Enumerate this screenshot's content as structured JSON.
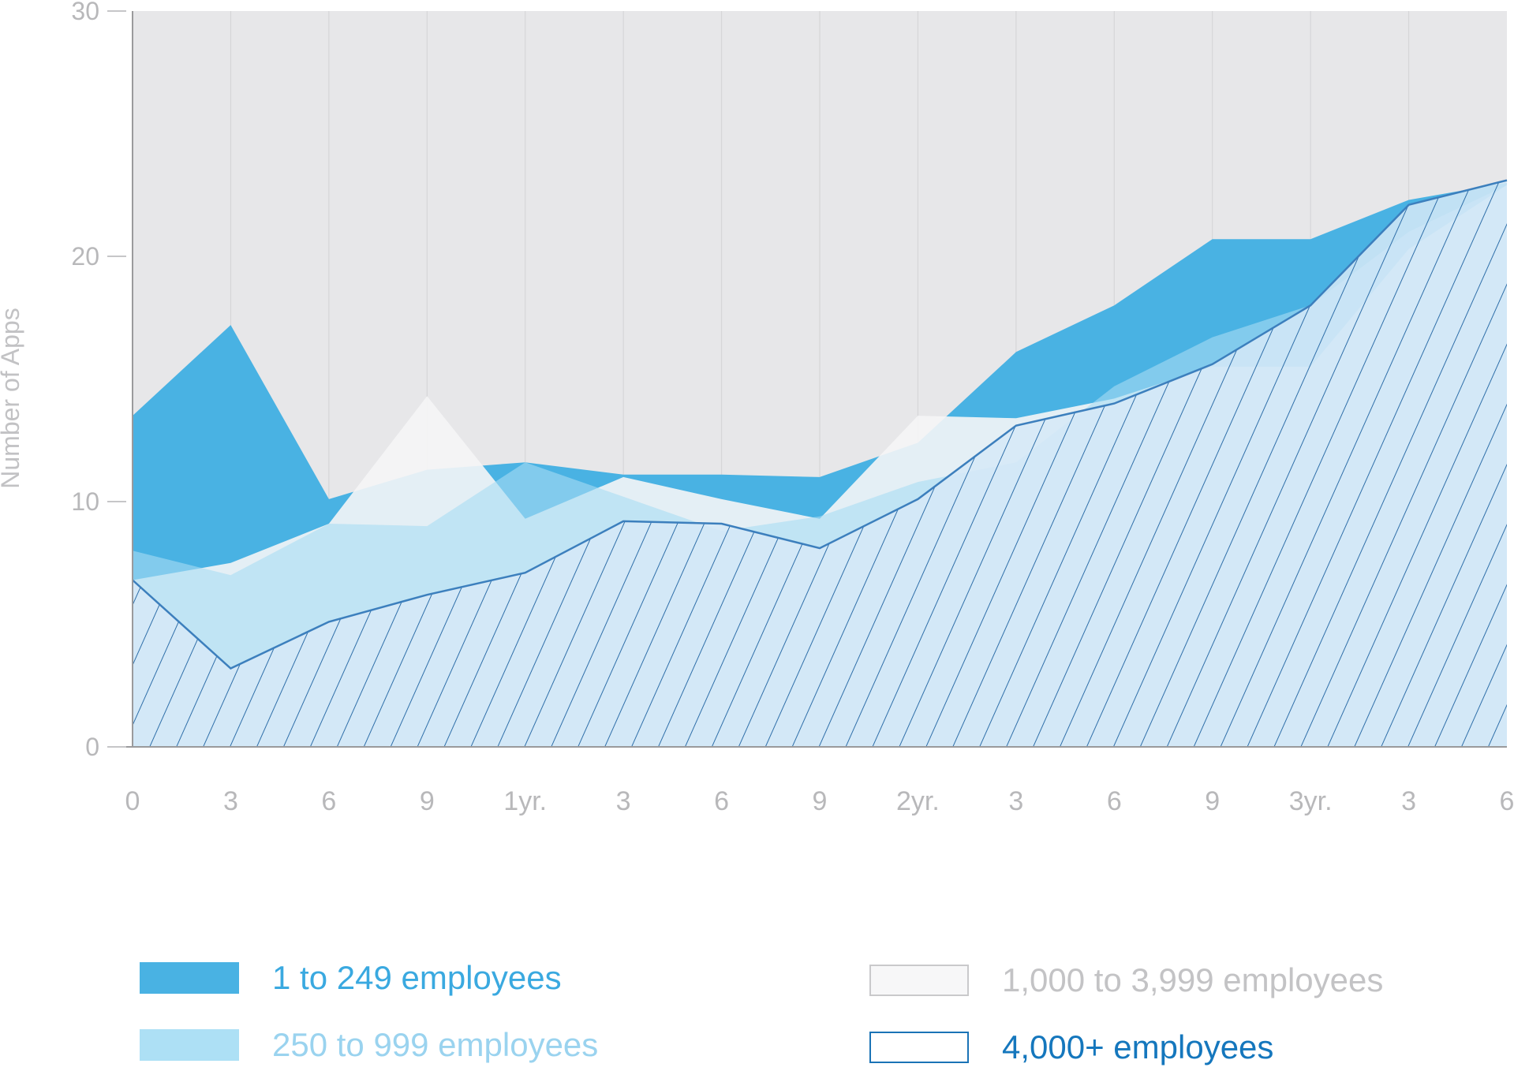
{
  "chart_data": {
    "type": "area",
    "title": "",
    "xlabel": "",
    "ylabel": "Number of Apps",
    "ylim": [
      0,
      30
    ],
    "yticks": [
      0,
      10,
      20,
      30
    ],
    "grid": true,
    "legend_position": "bottom",
    "categories": [
      "0",
      "3",
      "6",
      "9",
      "1yr.",
      "3",
      "6",
      "9",
      "2yr.",
      "3",
      "6",
      "9",
      "3yr.",
      "3",
      "6"
    ],
    "series": [
      {
        "name": "1 to 249 employees",
        "color": "#49b2e3",
        "style": "solid",
        "values": [
          13.5,
          17.2,
          10.1,
          11.3,
          11.6,
          11.1,
          11.1,
          11.0,
          12.4,
          16.1,
          18.0,
          20.7,
          20.7,
          22.3,
          23.0
        ]
      },
      {
        "name": "1,000 to 3,999 employees",
        "color": "#f5f5f6",
        "style": "outline-light",
        "values": [
          6.8,
          7.5,
          9.1,
          14.3,
          9.3,
          11.0,
          10.1,
          9.3,
          13.5,
          13.4,
          14.2,
          15.5,
          15.5,
          20.3,
          22.9
        ]
      },
      {
        "name": "250 to 999 employees",
        "color": "#a9dcf3",
        "style": "solid-light",
        "values": [
          8.0,
          7.0,
          9.1,
          9.0,
          11.6,
          10.2,
          8.8,
          9.4,
          10.8,
          11.6,
          14.7,
          16.7,
          18.0,
          21.0,
          22.9
        ]
      },
      {
        "name": "4,000+ employees",
        "color": "#1a73b6",
        "style": "hatched",
        "values": [
          6.8,
          3.2,
          5.1,
          6.2,
          7.1,
          9.2,
          9.1,
          8.1,
          10.1,
          13.1,
          14.0,
          15.6,
          18.0,
          22.1,
          23.1
        ]
      }
    ]
  },
  "legend": {
    "items": [
      {
        "label": "1 to 249 employees",
        "text_color": "#3aa9e0",
        "swatch_fill": "#49b2e3",
        "swatch_stroke": "#49b2e3"
      },
      {
        "label": "250 to 999 employees",
        "text_color": "#9ad3ef",
        "swatch_fill": "#ade0f5",
        "swatch_stroke": "#ade0f5"
      },
      {
        "label": "1,000 to 3,999 employees",
        "text_color": "#c3c3c5",
        "swatch_fill": "#f7f7f8",
        "swatch_stroke": "#c9c9cb"
      },
      {
        "label": "4,000+ employees",
        "text_color": "#1577bd",
        "swatch_fill": "#ffffff",
        "swatch_stroke": "#1a73b6"
      }
    ]
  }
}
